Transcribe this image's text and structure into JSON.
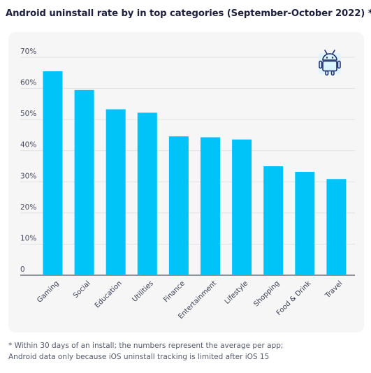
{
  "chart_data": {
    "type": "bar",
    "title": "Android uninstall rate by in top categories (September-October 2022) *",
    "categories": [
      "Gaming",
      "Social",
      "Education",
      "Utilities",
      "Finance",
      "Entertainment",
      "Lifestyle",
      "Shopping",
      "Food & Drink",
      "Travel"
    ],
    "values": [
      65.5,
      59.5,
      53.3,
      52.2,
      44.6,
      44.3,
      43.6,
      35.0,
      33.2,
      30.9
    ],
    "yticks": [
      "0",
      "10%",
      "20%",
      "30%",
      "40%",
      "50%",
      "60%",
      "70%"
    ],
    "ylim": [
      0,
      70
    ],
    "xlabel": "",
    "ylabel": "",
    "grid": true,
    "legend": "none",
    "bar_color": "#00c3f7"
  },
  "footnote": {
    "line1": "* Within 30 days of an install; the numbers represent the average per app;",
    "line2": "Android data only because iOS uninstall tracking is limited after iOS 15"
  },
  "icon": "android-robot-icon",
  "colors": {
    "title": "#1d1f3c",
    "card": "#f6f6f7",
    "grid": "#dcdcdf",
    "text": "#4a4c5e",
    "icon_fill": "#d9f3ff",
    "icon_stroke": "#1d2b6b"
  }
}
